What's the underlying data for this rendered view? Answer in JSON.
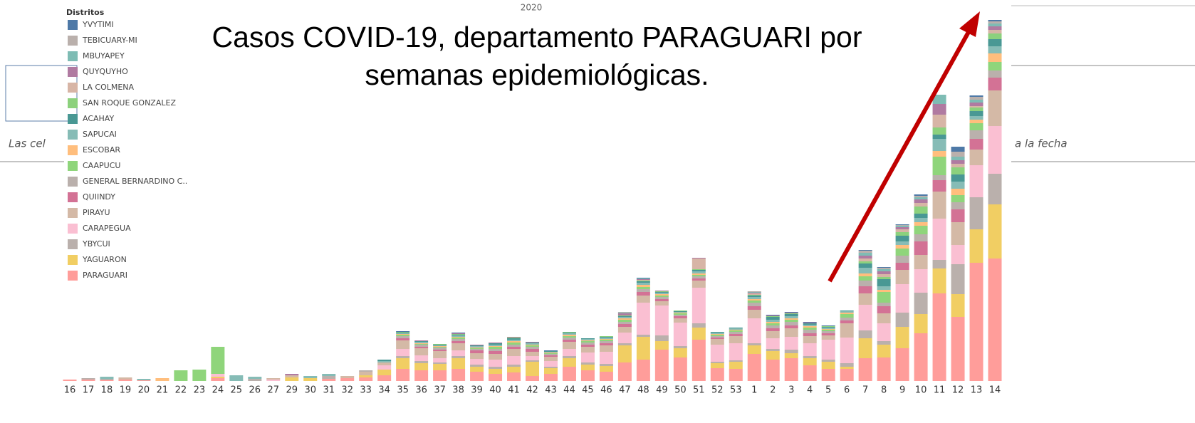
{
  "chart_data": {
    "type": "stacked_bar",
    "title": "Casos COVID-19, departamento PARAGUARI por semanas epidemiológicas.",
    "title_lines": [
      "Casos COVID-19, departamento PARAGUARI por",
      "semanas epidemiológicas."
    ],
    "header": "2020",
    "legend_title": "Distritos",
    "categories": [
      "16",
      "17",
      "18",
      "19",
      "20",
      "21",
      "22",
      "23",
      "24",
      "25",
      "26",
      "27",
      "29",
      "30",
      "31",
      "32",
      "33",
      "34",
      "35",
      "36",
      "37",
      "38",
      "39",
      "40",
      "41",
      "42",
      "43",
      "44",
      "45",
      "46",
      "47",
      "48",
      "49",
      "50",
      "51",
      "52",
      "53",
      "1",
      "2",
      "3",
      "4",
      "5",
      "6",
      "7",
      "8",
      "9",
      "10",
      "11",
      "12",
      "13",
      "14"
    ],
    "ylim": [
      0,
      507
    ],
    "series": [
      {
        "name": "YVYTIMI",
        "color": "#4e79a7",
        "values": [
          0,
          0,
          0,
          0,
          0,
          0,
          0,
          0,
          0,
          0,
          0,
          0,
          0,
          0,
          0,
          0,
          0,
          0,
          1,
          0,
          0,
          1,
          0,
          0,
          0,
          0,
          1,
          0,
          0,
          0,
          0,
          1,
          0,
          0,
          0,
          0,
          0,
          0,
          1,
          1,
          1,
          1,
          0,
          1,
          1,
          1,
          2,
          0,
          7,
          2,
          2
        ]
      },
      {
        "name": "TEBICUARY-MI",
        "color": "#bab0ac",
        "values": [
          0,
          0,
          0,
          0,
          0,
          0,
          0,
          0,
          0,
          0,
          0,
          0,
          0,
          0,
          0,
          0,
          0,
          0,
          0,
          0,
          0,
          0,
          0,
          0,
          0,
          0,
          0,
          0,
          0,
          0,
          1,
          0,
          0,
          0,
          0,
          0,
          0,
          1,
          0,
          0,
          0,
          0,
          0,
          3,
          2,
          1,
          2,
          0,
          7,
          4,
          3
        ]
      },
      {
        "name": "MBUYAPEY",
        "color": "#7ebcb4",
        "values": [
          0,
          0,
          0,
          0,
          0,
          0,
          0,
          0,
          0,
          0,
          0,
          0,
          0,
          0,
          0,
          0,
          0,
          0,
          0,
          0,
          0,
          0,
          0,
          0,
          0,
          0,
          0,
          0,
          0,
          0,
          1,
          1,
          0,
          0,
          0,
          0,
          0,
          1,
          0,
          0,
          0,
          0,
          0,
          4,
          3,
          2,
          3,
          13,
          5,
          4,
          4
        ]
      },
      {
        "name": "QUYQUYHO",
        "color": "#b07aa1",
        "values": [
          0,
          0,
          0,
          0,
          0,
          0,
          0,
          0,
          0,
          0,
          0,
          0,
          2,
          0,
          0,
          0,
          0,
          0,
          0,
          1,
          0,
          1,
          1,
          1,
          1,
          1,
          0,
          0,
          0,
          0,
          3,
          1,
          1,
          0,
          1,
          0,
          0,
          1,
          1,
          1,
          1,
          0,
          0,
          4,
          4,
          3,
          5,
          15,
          5,
          5,
          5
        ]
      },
      {
        "name": "LA COLMENA",
        "color": "#d7b5a6",
        "values": [
          0,
          0,
          0,
          0,
          0,
          0,
          0,
          0,
          0,
          0,
          0,
          0,
          0,
          0,
          0,
          0,
          0,
          0,
          0,
          0,
          0,
          0,
          0,
          0,
          0,
          0,
          0,
          0,
          0,
          0,
          0,
          1,
          0,
          0,
          15,
          0,
          0,
          2,
          0,
          0,
          0,
          0,
          0,
          4,
          4,
          4,
          5,
          18,
          5,
          2,
          5
        ]
      },
      {
        "name": "SAN ROQUE GONZALEZ",
        "color": "#8cd17d",
        "values": [
          0,
          0,
          0,
          0,
          0,
          0,
          0,
          0,
          0,
          0,
          0,
          0,
          0,
          0,
          0,
          0,
          0,
          0,
          1,
          0,
          1,
          1,
          0,
          0,
          1,
          0,
          0,
          1,
          0,
          1,
          1,
          1,
          1,
          1,
          1,
          0,
          0,
          1,
          1,
          1,
          0,
          1,
          0,
          3,
          3,
          5,
          10,
          10,
          10,
          5,
          8
        ]
      },
      {
        "name": "ACAHAY",
        "color": "#499894",
        "values": [
          0,
          0,
          0,
          0,
          0,
          0,
          0,
          0,
          0,
          0,
          0,
          0,
          0,
          0,
          0,
          0,
          0,
          2,
          1,
          1,
          1,
          1,
          1,
          2,
          2,
          1,
          1,
          1,
          1,
          1,
          1,
          2,
          1,
          1,
          2,
          1,
          1,
          2,
          4,
          3,
          2,
          1,
          1,
          6,
          10,
          8,
          6,
          6,
          10,
          7,
          10
        ]
      },
      {
        "name": "SAPUCAI",
        "color": "#86bcb6",
        "values": [
          0,
          0,
          4,
          0,
          2,
          0,
          0,
          0,
          0,
          8,
          3,
          0,
          0,
          3,
          3,
          0,
          0,
          2,
          1,
          2,
          1,
          2,
          2,
          2,
          2,
          2,
          1,
          2,
          2,
          2,
          2,
          3,
          2,
          1,
          3,
          2,
          2,
          3,
          3,
          3,
          2,
          2,
          2,
          8,
          5,
          5,
          6,
          17,
          10,
          5,
          10
        ]
      },
      {
        "name": "ESCOBAR",
        "color": "#ffbe7d",
        "values": [
          0,
          0,
          0,
          0,
          0,
          4,
          0,
          0,
          0,
          0,
          0,
          0,
          0,
          0,
          0,
          0,
          0,
          0,
          1,
          1,
          1,
          1,
          1,
          1,
          2,
          1,
          1,
          2,
          1,
          1,
          2,
          3,
          2,
          1,
          2,
          1,
          1,
          2,
          2,
          2,
          2,
          1,
          2,
          4,
          3,
          5,
          5,
          8,
          9,
          5,
          12
        ]
      },
      {
        "name": "CAAPUCU",
        "color": "#8fd57b",
        "values": [
          0,
          0,
          0,
          0,
          0,
          0,
          15,
          16,
          38,
          0,
          0,
          0,
          0,
          0,
          0,
          0,
          0,
          0,
          2,
          1,
          1,
          2,
          1,
          3,
          3,
          2,
          1,
          2,
          2,
          2,
          3,
          3,
          2,
          2,
          2,
          2,
          2,
          3,
          3,
          3,
          3,
          2,
          5,
          6,
          15,
          10,
          12,
          26,
          10,
          10,
          12
        ]
      },
      {
        "name": "GENERAL BERNARDINO C..",
        "color": "#bab0ac",
        "values": [
          0,
          2,
          0,
          0,
          0,
          0,
          0,
          0,
          0,
          0,
          3,
          0,
          0,
          0,
          4,
          0,
          2,
          0,
          3,
          3,
          3,
          3,
          2,
          3,
          3,
          3,
          2,
          3,
          3,
          3,
          3,
          4,
          3,
          2,
          3,
          2,
          3,
          5,
          4,
          5,
          5,
          3,
          4,
          8,
          5,
          10,
          10,
          7,
          10,
          12,
          10
        ]
      },
      {
        "name": "QUIINDY",
        "color": "#d37295",
        "values": [
          0,
          0,
          0,
          0,
          0,
          0,
          0,
          0,
          0,
          0,
          0,
          0,
          0,
          0,
          0,
          0,
          0,
          0,
          3,
          2,
          2,
          3,
          4,
          4,
          3,
          4,
          2,
          3,
          3,
          3,
          4,
          5,
          3,
          3,
          3,
          2,
          3,
          5,
          4,
          4,
          4,
          3,
          4,
          10,
          10,
          10,
          19,
          16,
          18,
          15,
          18
        ]
      },
      {
        "name": "PIRAYU",
        "color": "#d4b9a6",
        "values": [
          0,
          0,
          0,
          3,
          0,
          0,
          0,
          0,
          0,
          0,
          0,
          2,
          3,
          0,
          0,
          3,
          5,
          4,
          12,
          10,
          10,
          10,
          8,
          8,
          10,
          6,
          6,
          10,
          8,
          9,
          8,
          10,
          6,
          6,
          10,
          8,
          10,
          12,
          10,
          12,
          10,
          6,
          20,
          16,
          14,
          20,
          20,
          38,
          32,
          22,
          50
        ]
      },
      {
        "name": "CARAPEGUA",
        "color": "#fabfd2",
        "values": [
          0,
          0,
          0,
          0,
          0,
          0,
          0,
          0,
          4,
          0,
          0,
          2,
          0,
          0,
          0,
          0,
          0,
          6,
          10,
          8,
          6,
          8,
          8,
          10,
          12,
          6,
          8,
          10,
          14,
          17,
          15,
          45,
          42,
          33,
          50,
          24,
          24,
          35,
          15,
          18,
          18,
          28,
          36,
          36,
          25,
          40,
          33,
          58,
          27,
          45,
          67
        ]
      },
      {
        "name": "YBYCUI",
        "color": "#bab0ac",
        "values": [
          0,
          0,
          0,
          0,
          0,
          0,
          0,
          0,
          0,
          0,
          0,
          0,
          0,
          0,
          0,
          0,
          0,
          0,
          3,
          3,
          2,
          3,
          3,
          3,
          3,
          2,
          2,
          3,
          3,
          3,
          3,
          3,
          8,
          3,
          6,
          2,
          2,
          3,
          3,
          5,
          3,
          3,
          5,
          11,
          5,
          20,
          30,
          12,
          42,
          45,
          43
        ]
      },
      {
        "name": "YAGUARON",
        "color": "#f1ce63",
        "values": [
          0,
          0,
          0,
          0,
          0,
          0,
          0,
          0,
          2,
          0,
          0,
          0,
          5,
          4,
          0,
          0,
          3,
          8,
          15,
          10,
          9,
          15,
          7,
          7,
          8,
          20,
          8,
          12,
          8,
          8,
          24,
          32,
          12,
          13,
          17,
          7,
          10,
          12,
          12,
          7,
          10,
          10,
          3,
          28,
          18,
          30,
          27,
          35,
          32,
          47,
          76
        ]
      },
      {
        "name": "PARAGUARI",
        "color": "#ff9d9a",
        "values": [
          2,
          2,
          2,
          2,
          1,
          0,
          0,
          0,
          4,
          0,
          0,
          0,
          0,
          0,
          3,
          4,
          5,
          8,
          17,
          15,
          15,
          17,
          13,
          10,
          12,
          7,
          10,
          20,
          15,
          13,
          26,
          30,
          44,
          33,
          58,
          18,
          17,
          38,
          30,
          32,
          22,
          17,
          17,
          32,
          33,
          46,
          67,
          123,
          90,
          166,
          172
        ]
      }
    ],
    "arrow_color": "#c00000"
  },
  "background_texts": [
    "Las cel",
    "a la fecha"
  ]
}
